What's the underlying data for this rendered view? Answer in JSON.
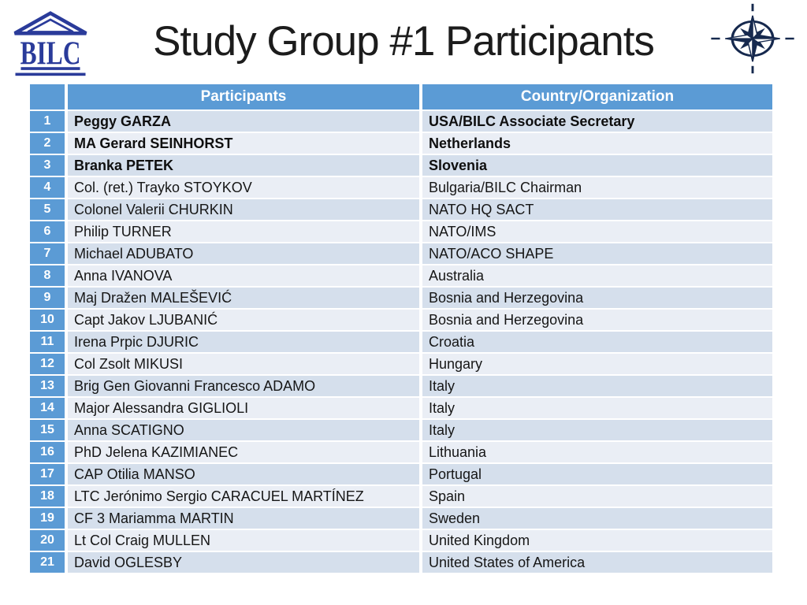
{
  "header": {
    "title": "Study Group #1 Participants",
    "bilc_logo_text": "BILC"
  },
  "table": {
    "columns": {
      "index": "",
      "participants": "Participants",
      "country": "Country/Organization"
    },
    "rows": [
      {
        "n": "1",
        "name": "Peggy GARZA",
        "country": "USA/BILC Associate Secretary",
        "bold": true
      },
      {
        "n": "2",
        "name": "MA Gerard SEINHORST",
        "country": "Netherlands",
        "bold": true
      },
      {
        "n": "3",
        "name": "Branka PETEK",
        "country": "Slovenia",
        "bold": true
      },
      {
        "n": "4",
        "name": "Col. (ret.) Trayko STOYKOV",
        "country": "Bulgaria/BILC Chairman",
        "bold": false
      },
      {
        "n": "5",
        "name": "Colonel Valerii CHURKIN",
        "country": "NATO HQ SACT",
        "bold": false
      },
      {
        "n": "6",
        "name": "Philip TURNER",
        "country": "NATO/IMS",
        "bold": false
      },
      {
        "n": "7",
        "name": "Michael ADUBATO",
        "country": "NATO/ACO SHAPE",
        "bold": false
      },
      {
        "n": "8",
        "name": "Anna IVANOVA",
        "country": "Australia",
        "bold": false
      },
      {
        "n": "9",
        "name": "Maj Dražen MALEŠEVIĆ",
        "country": "Bosnia and Herzegovina",
        "bold": false
      },
      {
        "n": "10",
        "name": "Capt Jakov LJUBANIĆ",
        "country": "Bosnia and Herzegovina",
        "bold": false
      },
      {
        "n": "11",
        "name": "Irena Prpic DJURIC",
        "country": "Croatia",
        "bold": false
      },
      {
        "n": "12",
        "name": "Col Zsolt MIKUSI",
        "country": "Hungary",
        "bold": false
      },
      {
        "n": "13",
        "name": "Brig Gen Giovanni Francesco ADAMO",
        "country": "Italy",
        "bold": false
      },
      {
        "n": "14",
        "name": "Major Alessandra GIGLIOLI",
        "country": "Italy",
        "bold": false
      },
      {
        "n": "15",
        "name": "Anna SCATIGNO",
        "country": "Italy",
        "bold": false
      },
      {
        "n": "16",
        "name": "PhD Jelena KAZIMIANEC",
        "country": "Lithuania",
        "bold": false
      },
      {
        "n": "17",
        "name": "CAP Otilia MANSO",
        "country": "Portugal",
        "bold": false
      },
      {
        "n": "18",
        "name": "LTC Jerónimo Sergio CARACUEL MARTÍNEZ",
        "country": "Spain",
        "bold": false
      },
      {
        "n": "19",
        "name": "CF 3 Mariamma MARTIN",
        "country": "Sweden",
        "bold": false
      },
      {
        "n": "20",
        "name": "Lt Col Craig MULLEN",
        "country": "United Kingdom",
        "bold": false
      },
      {
        "n": "21",
        "name": "David OGLESBY",
        "country": "United States of America",
        "bold": false
      }
    ]
  },
  "colors": {
    "header_blue": "#5B9BD5",
    "band_dark": "#D5DFEC",
    "band_light": "#EAEEF5",
    "nato_navy": "#16294E",
    "bilc_blue": "#2A3B9A"
  }
}
